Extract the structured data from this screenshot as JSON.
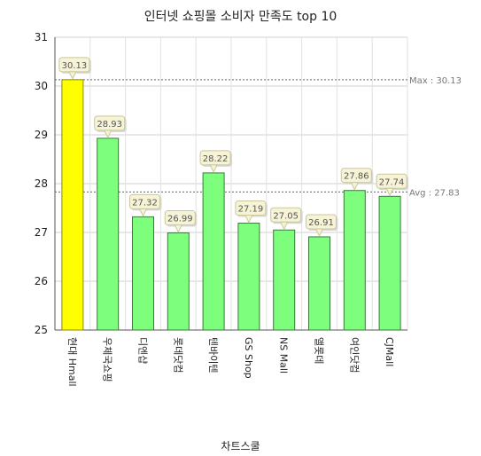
{
  "chart_data": {
    "type": "bar",
    "title": "인터넷 쇼핑몰 소비자 만족도 top 10",
    "xlabel": "차트스쿨",
    "ylabel": "",
    "ylim": [
      25,
      31
    ],
    "y_ticks": [
      25,
      26,
      27,
      28,
      29,
      30,
      31
    ],
    "grid": true,
    "categories": [
      "현대 Hmall",
      "우체국쇼핑",
      "디엔샵",
      "롯데닷컴",
      "텐바이텐",
      "GS Shop",
      "NS Mall",
      "앨롯데",
      "여인닷컴",
      "CJMall"
    ],
    "values": [
      30.13,
      28.93,
      27.32,
      26.99,
      28.22,
      27.19,
      27.05,
      26.91,
      27.86,
      27.74
    ],
    "highlight_index": 0,
    "reference_lines": [
      {
        "label": "Max : 30.13",
        "value": 30.13
      },
      {
        "label": "Avg : 27.83",
        "value": 27.83
      }
    ],
    "colors": {
      "bar": "#7dff7d",
      "bar_highlight": "#ffff00",
      "bar_stroke": "#3a7a3a",
      "label_bg": "#f7f3d6",
      "label_border": "#c9c79b"
    }
  }
}
